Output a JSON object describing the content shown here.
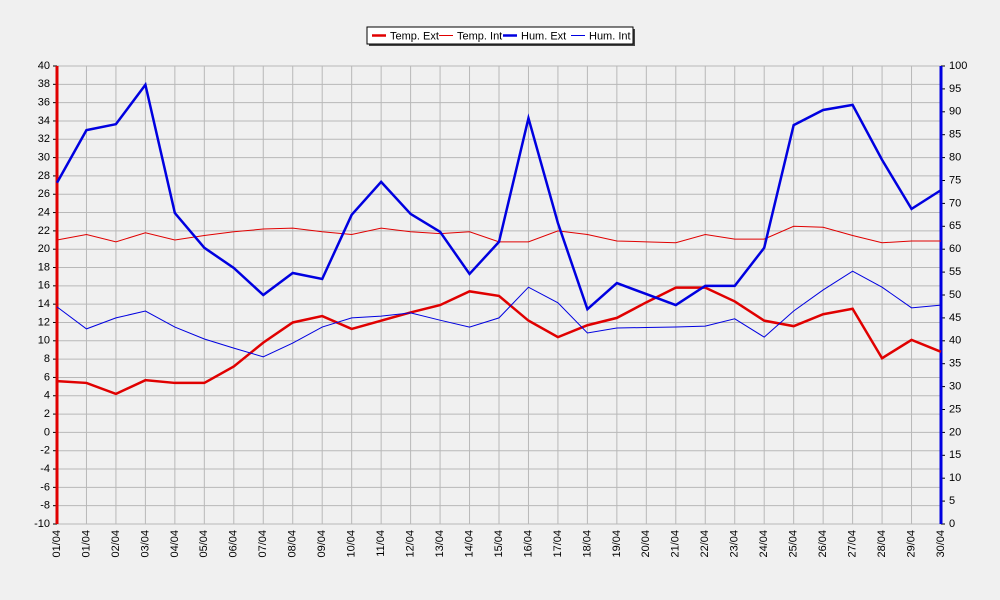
{
  "chart_data": {
    "type": "line",
    "categories": [
      "01/04",
      "01/04",
      "02/04",
      "03/04",
      "04/04",
      "05/04",
      "06/04",
      "07/04",
      "08/04",
      "09/04",
      "10/04",
      "11/04",
      "12/04",
      "13/04",
      "14/04",
      "15/04",
      "16/04",
      "17/04",
      "18/04",
      "19/04",
      "20/04",
      "21/04",
      "22/04",
      "23/04",
      "24/04",
      "25/04",
      "26/04",
      "27/04",
      "28/04",
      "29/04",
      "30/04"
    ],
    "series": [
      {
        "name": "Temp. Ext",
        "color": "#e00000",
        "width": 2.5,
        "values": [
          5.6,
          5.4,
          4.2,
          5.7,
          5.4,
          5.4,
          7.2,
          9.8,
          12.0,
          12.7,
          11.3,
          12.2,
          13.1,
          13.9,
          15.4,
          14.9,
          12.2,
          10.4,
          11.7,
          12.5,
          14.2,
          15.8,
          15.8,
          14.3,
          12.2,
          11.6,
          12.9,
          13.5,
          8.1,
          10.1,
          8.8
        ]
      },
      {
        "name": "Temp. Int",
        "color": "#e00000",
        "width": 1,
        "values": [
          21.0,
          21.6,
          20.8,
          21.8,
          21.0,
          21.5,
          21.9,
          22.2,
          22.3,
          21.9,
          21.6,
          22.3,
          21.9,
          21.7,
          21.9,
          20.8,
          20.8,
          22.0,
          21.6,
          20.9,
          20.8,
          20.7,
          21.6,
          21.1,
          21.1,
          22.5,
          22.4,
          21.5,
          20.7,
          20.9,
          20.9
        ]
      },
      {
        "name": "Hum. Ext",
        "color": "#0000e0",
        "width": 2.5,
        "axis": "y2",
        "values": [
          74.5,
          86.0,
          87.3,
          95.9,
          67.9,
          60.3,
          55.9,
          50.0,
          54.8,
          53.5,
          67.5,
          74.7,
          67.7,
          63.8,
          54.6,
          61.6,
          88.6,
          65.7,
          46.9,
          52.6,
          50.2,
          47.8,
          52.0,
          52.0,
          60.3,
          87.1,
          90.4,
          91.5,
          79.5,
          68.8,
          72.9
        ]
      },
      {
        "name": "Hum. Int",
        "color": "#0000e0",
        "width": 1,
        "axis": "y2",
        "values": [
          47.4,
          42.6,
          45.0,
          46.5,
          43.0,
          40.4,
          38.4,
          36.5,
          39.5,
          43.0,
          45.0,
          45.4,
          46.1,
          44.5,
          43.0,
          45.0,
          51.7,
          48.3,
          41.7,
          42.8,
          42.9,
          43.0,
          43.2,
          44.8,
          40.8,
          46.5,
          51.1,
          55.2,
          51.7,
          47.2,
          47.8
        ]
      }
    ],
    "ylim": [
      -10,
      40
    ],
    "yticks": [
      -10,
      -8,
      -6,
      -4,
      -2,
      0,
      2,
      4,
      6,
      8,
      10,
      12,
      14,
      16,
      18,
      20,
      22,
      24,
      26,
      28,
      30,
      32,
      34,
      36,
      38,
      40
    ],
    "y2lim": [
      0,
      100
    ],
    "y2ticks": [
      0,
      5,
      10,
      15,
      20,
      25,
      30,
      35,
      40,
      45,
      50,
      55,
      60,
      65,
      70,
      75,
      80,
      85,
      90,
      95,
      100
    ],
    "grid": true,
    "legend": "top"
  }
}
